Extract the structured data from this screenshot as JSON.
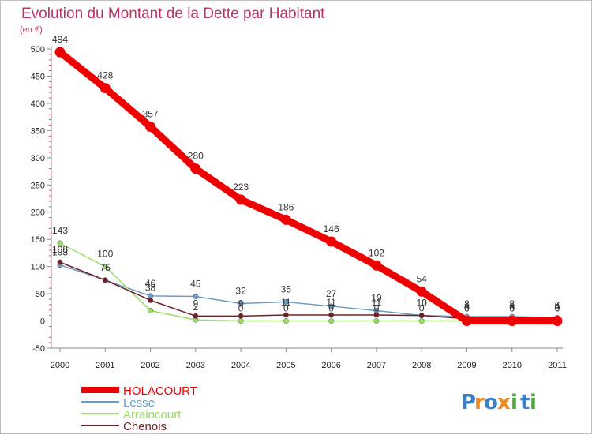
{
  "chart_data": {
    "type": "line",
    "title": "Evolution du Montant de la Dette par Habitant",
    "subtitle": "(en €)",
    "xlabel": "",
    "ylabel": "",
    "x": [
      "2000",
      "2001",
      "2002",
      "2003",
      "2004",
      "2005",
      "2006",
      "2007",
      "2008",
      "2009",
      "2010",
      "2011"
    ],
    "ylim": [
      -50,
      500
    ],
    "yticks": [
      -50,
      0,
      50,
      100,
      150,
      200,
      250,
      300,
      350,
      400,
      450,
      500
    ],
    "grid": false,
    "legend_position": "bottom-left",
    "series": [
      {
        "name": "HOLACOURT",
        "color": "#ee0000",
        "values": [
          494,
          428,
          357,
          280,
          223,
          186,
          146,
          102,
          54,
          0,
          0,
          0
        ],
        "labels": [
          "494",
          "428",
          "357",
          "280",
          "223",
          "186",
          "146",
          "102",
          "54",
          "0",
          "0",
          "0"
        ]
      },
      {
        "name": "Lesse",
        "color": "#6b9bc8",
        "values": [
          103,
          75,
          46,
          45,
          32,
          35,
          27,
          19,
          10,
          8,
          8,
          6
        ],
        "labels": [
          "103",
          "",
          "46",
          "45",
          "32",
          "35",
          "27",
          "19",
          "10",
          "8",
          "8",
          "6"
        ]
      },
      {
        "name": "Arraincourt",
        "color": "#99dd66",
        "values": [
          143,
          100,
          19,
          2,
          0,
          0,
          0,
          0,
          0,
          0,
          0,
          0
        ],
        "labels": [
          "143",
          "100",
          "",
          "2",
          "0",
          "0",
          "0",
          "0",
          "0",
          "0",
          "0",
          "0"
        ]
      },
      {
        "name": "Chenois",
        "color": "#702028",
        "values": [
          108,
          75,
          38,
          9,
          9,
          11,
          11,
          11,
          10,
          4,
          4,
          4
        ],
        "labels": [
          "108",
          "75",
          "38",
          "9",
          "9",
          "11",
          "11",
          "11",
          "10",
          "4",
          "4",
          "4"
        ]
      }
    ]
  },
  "logo": {
    "letters": [
      "P",
      "r",
      "o",
      "x",
      "i",
      "t",
      "i"
    ],
    "colors": [
      "#3b7fc8",
      "#f08a1c",
      "#3b7fc8",
      "#f08a1c",
      "#4aaa3a",
      "#3b7fc8",
      "#4aaa3a"
    ]
  }
}
